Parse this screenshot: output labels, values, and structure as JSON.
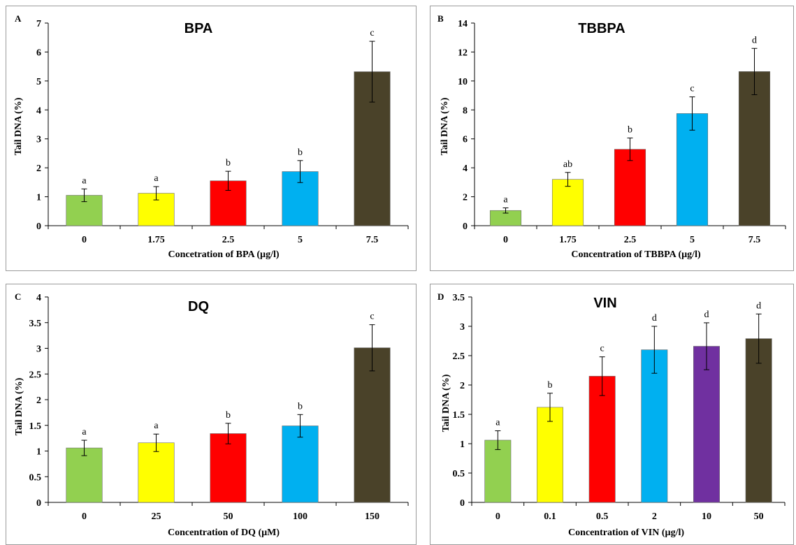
{
  "chart_data": [
    {
      "panel": "A",
      "type": "bar",
      "title": "BPA",
      "xlabel": "Concetration of BPA (µg/l)",
      "ylabel": "Tail DNA (%)",
      "ylim": [
        0,
        7
      ],
      "yticks": [
        0,
        1,
        2,
        3,
        4,
        5,
        6,
        7
      ],
      "categories": [
        "0",
        "1.75",
        "2.5",
        "5",
        "7.5"
      ],
      "values": [
        1.05,
        1.12,
        1.55,
        1.87,
        5.32
      ],
      "errors": [
        0.22,
        0.23,
        0.33,
        0.38,
        1.05
      ],
      "labels": [
        "a",
        "a",
        "b",
        "b",
        "c"
      ],
      "colors": [
        "#92d050",
        "#ffff00",
        "#ff0000",
        "#00b0f0",
        "#4a4229"
      ],
      "grid": false,
      "legend": "none"
    },
    {
      "panel": "B",
      "type": "bar",
      "title": "TBBPA",
      "xlabel": "Concentration of TBBPA (µg/l)",
      "ylabel": "Tail DNA (%)",
      "ylim": [
        0,
        14
      ],
      "yticks": [
        0,
        2,
        4,
        6,
        8,
        10,
        12,
        14
      ],
      "categories": [
        "0",
        "1.75",
        "2.5",
        "5",
        "7.5"
      ],
      "values": [
        1.05,
        3.2,
        5.28,
        7.75,
        10.65
      ],
      "errors": [
        0.18,
        0.48,
        0.78,
        1.15,
        1.6
      ],
      "labels": [
        "a",
        "ab",
        "b",
        "c",
        "d"
      ],
      "colors": [
        "#92d050",
        "#ffff00",
        "#ff0000",
        "#00b0f0",
        "#4a4229"
      ],
      "grid": false,
      "legend": "none"
    },
    {
      "panel": "C",
      "type": "bar",
      "title": "DQ",
      "xlabel": "Concentration of DQ (µM)",
      "ylabel": "Tail DNA (%)",
      "ylim": [
        0,
        4
      ],
      "yticks": [
        "0",
        "0.5",
        "1",
        "1.5",
        "2",
        "2.5",
        "3",
        "3.5",
        "4"
      ],
      "categories": [
        "0",
        "25",
        "50",
        "100",
        "150"
      ],
      "values": [
        1.06,
        1.16,
        1.34,
        1.49,
        3.01
      ],
      "errors": [
        0.15,
        0.17,
        0.2,
        0.22,
        0.45
      ],
      "labels": [
        "a",
        "a",
        "b",
        "b",
        "c"
      ],
      "colors": [
        "#92d050",
        "#ffff00",
        "#ff0000",
        "#00b0f0",
        "#4a4229"
      ],
      "grid": false,
      "legend": "none"
    },
    {
      "panel": "D",
      "type": "bar",
      "title": "VIN",
      "xlabel": "Concentration of VIN (µg/l)",
      "ylabel": "Tail DNA (%)",
      "ylim": [
        0,
        3.5
      ],
      "yticks": [
        "0",
        "0.5",
        "1",
        "1.5",
        "2",
        "2.5",
        "3",
        "3.5"
      ],
      "categories": [
        "0",
        "0.1",
        "0.5",
        "2",
        "10",
        "50"
      ],
      "values": [
        1.06,
        1.62,
        2.15,
        2.6,
        2.66,
        2.79
      ],
      "errors": [
        0.16,
        0.24,
        0.33,
        0.4,
        0.4,
        0.42
      ],
      "labels": [
        "a",
        "b",
        "c",
        "d",
        "d",
        "d"
      ],
      "colors": [
        "#92d050",
        "#ffff00",
        "#ff0000",
        "#00b0f0",
        "#7030a0",
        "#4a4229"
      ],
      "grid": false,
      "legend": "none"
    }
  ]
}
